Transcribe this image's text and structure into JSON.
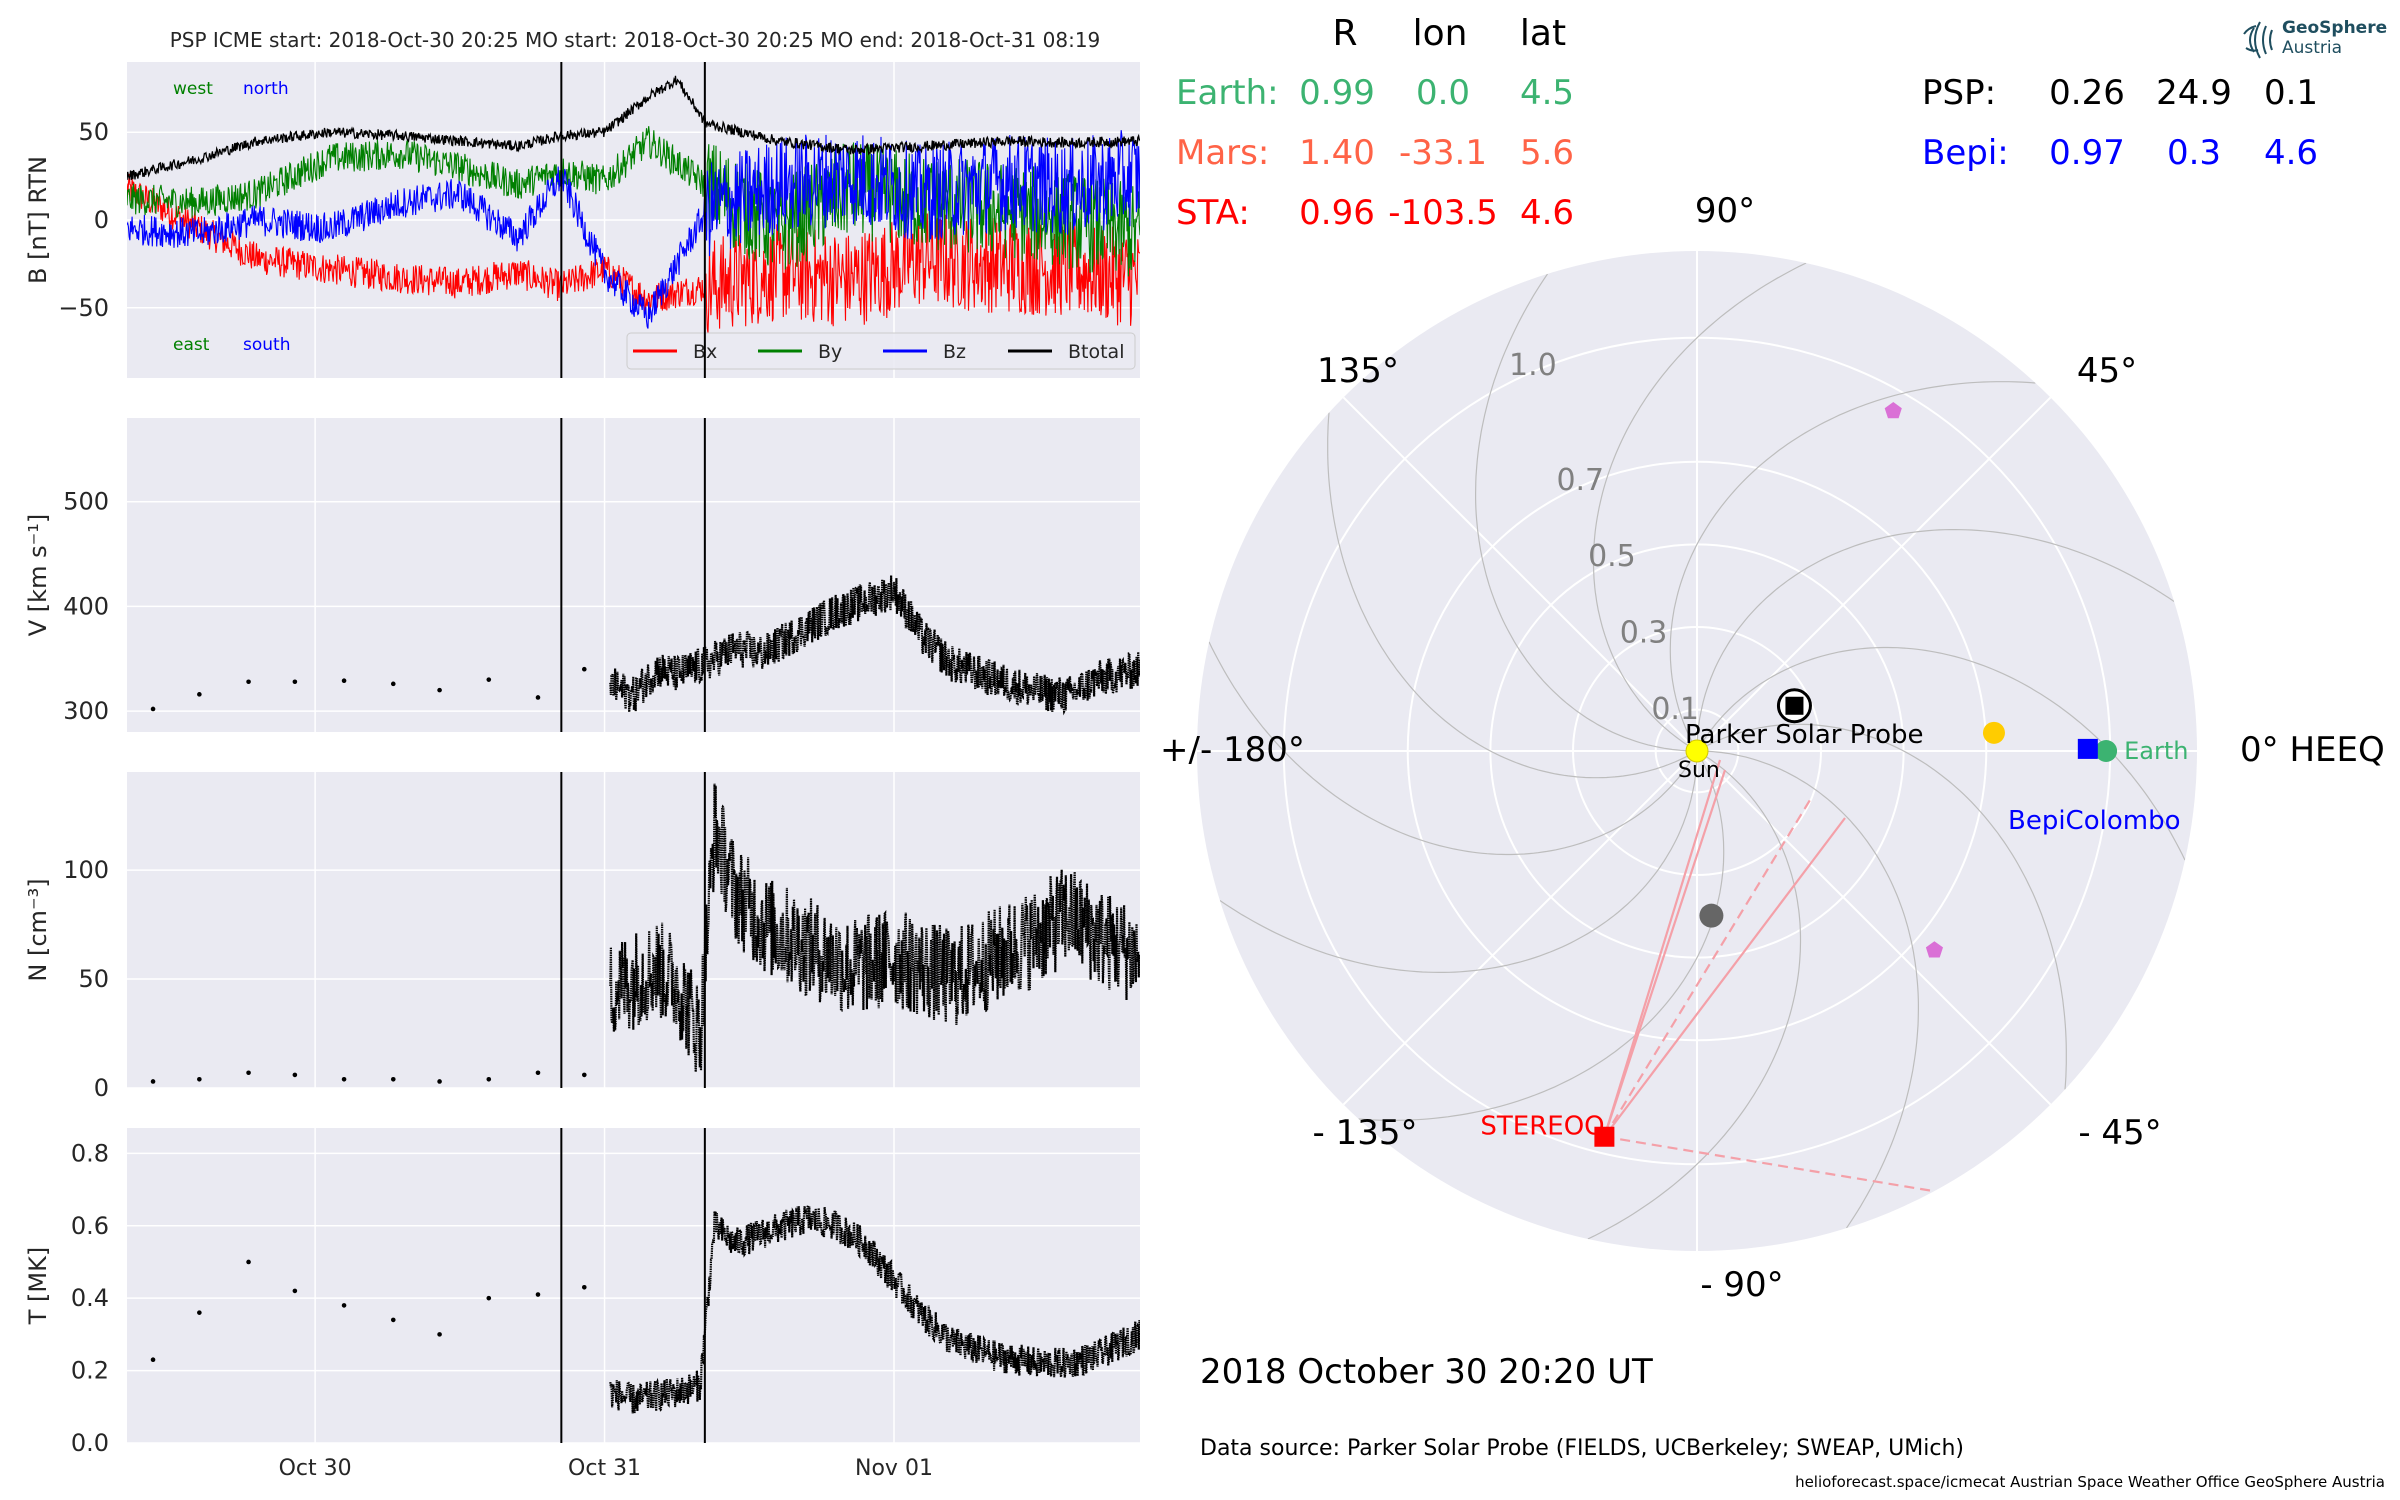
{
  "header": {
    "title": "PSP    ICME start: 2018-Oct-30 20:25   MO start: 2018-Oct-30 20:25   MO end: 2018-Oct-31 08:19"
  },
  "logo": {
    "line1": "GeoSphere",
    "line2": "Austria"
  },
  "timestamp": "2018 October 30  20:20 UT",
  "data_source": "Data source: Parker Solar Probe (FIELDS, UCBerkeley; SWEAP, UMich)",
  "credits": "helioforecast.space/icmecat   Austrian Space Weather Office   GeoSphere Austria",
  "colors": {
    "panel_bg": "#eaeaf2",
    "earth": "#3cb371",
    "mars": "#ff6347",
    "sta": "#ff0000",
    "bepi": "#0000ff",
    "psp": "#000000",
    "bx": "#ff0000",
    "by": "#008000",
    "bz": "#0000ff",
    "btotal": "#000000",
    "venus": "#ffcc00",
    "mercury": "#666666",
    "sun": "#ffff00",
    "solo": "#da70d6"
  },
  "position_table": {
    "headers": [
      "R",
      "lon",
      "lat"
    ],
    "rows": [
      {
        "name": "Earth:",
        "R": "0.99",
        "lon": "0.0",
        "lat": "4.5",
        "color": "#3cb371"
      },
      {
        "name": "Mars:",
        "R": "1.40",
        "lon": "-33.1",
        "lat": "5.6",
        "color": "#ff6347"
      },
      {
        "name": "STA:",
        "R": "0.96",
        "lon": "-103.5",
        "lat": "4.6",
        "color": "#ff0000"
      },
      {
        "name": "PSP:",
        "R": "0.26",
        "lon": "24.9",
        "lat": "0.1",
        "color": "#000000"
      },
      {
        "name": "Bepi:",
        "R": "0.97",
        "lon": "0.3",
        "lat": "4.6",
        "color": "#0000ff"
      }
    ]
  },
  "chart_data": [
    {
      "type": "line",
      "panel": "magnetic_field",
      "ylabel": "B [nT] RTN",
      "ylim": [
        -90,
        90
      ],
      "yticks": [
        -50,
        0,
        50
      ],
      "corner_labels": {
        "top_left": "west",
        "top_right": "north",
        "bottom_left": "east",
        "bottom_right": "south"
      },
      "xlim_days": [
        29.35,
        32.85
      ],
      "event_lines": [
        "2018-10-30 20:25",
        "2018-10-31 08:19"
      ],
      "legend": [
        "Bx",
        "By",
        "Bz",
        "Btotal"
      ],
      "legend_position": "lower-right",
      "series": [
        {
          "name": "Bx",
          "x": [
            29.35,
            29.6,
            29.8,
            30.05,
            30.3,
            30.5,
            30.7,
            30.85,
            31.0,
            31.15,
            31.35,
            31.6,
            31.85,
            32.1,
            32.4,
            32.6,
            32.85
          ],
          "y": [
            18,
            -5,
            -22,
            -28,
            -33,
            -36,
            -30,
            -38,
            -28,
            -45,
            -38,
            -30,
            -34,
            -22,
            -26,
            -28,
            -34
          ]
        },
        {
          "name": "By",
          "x": [
            29.35,
            29.6,
            29.8,
            30.05,
            30.3,
            30.5,
            30.7,
            30.85,
            31.0,
            31.15,
            31.35,
            31.6,
            31.85,
            32.1,
            32.4,
            32.6,
            32.85
          ],
          "y": [
            12,
            10,
            15,
            35,
            38,
            30,
            20,
            28,
            22,
            45,
            20,
            -5,
            18,
            10,
            5,
            0,
            -8
          ]
        },
        {
          "name": "Bz",
          "x": [
            29.35,
            29.6,
            29.8,
            30.05,
            30.3,
            30.5,
            30.7,
            30.85,
            31.0,
            31.15,
            31.35,
            31.6,
            31.85,
            32.1,
            32.4,
            32.6,
            32.85
          ],
          "y": [
            -5,
            -8,
            0,
            -5,
            10,
            15,
            -10,
            25,
            -30,
            -55,
            5,
            20,
            25,
            15,
            22,
            18,
            25
          ]
        },
        {
          "name": "Btotal",
          "x": [
            29.35,
            29.6,
            29.8,
            30.05,
            30.3,
            30.5,
            30.7,
            30.85,
            31.0,
            31.15,
            31.25,
            31.35,
            31.6,
            31.85,
            32.1,
            32.4,
            32.6,
            32.85
          ],
          "y": [
            25,
            35,
            45,
            50,
            48,
            45,
            42,
            48,
            50,
            70,
            80,
            55,
            45,
            40,
            42,
            45,
            44,
            45
          ]
        }
      ]
    },
    {
      "type": "scatter",
      "panel": "speed",
      "ylabel": "V [km s⁻¹]",
      "ylim": [
        280,
        580
      ],
      "yticks": [
        300,
        400,
        500
      ],
      "sparse": {
        "x": [
          29.44,
          29.6,
          29.77,
          29.93,
          30.1,
          30.27,
          30.43,
          30.6,
          30.77,
          30.93
        ],
        "y": [
          302,
          316,
          328,
          328,
          329,
          326,
          320,
          330,
          313,
          340
        ]
      },
      "continuous": {
        "x": [
          31.02,
          31.1,
          31.18,
          31.25,
          31.35,
          31.45,
          31.55,
          31.7,
          31.8,
          31.9,
          32.0,
          32.1,
          32.2,
          32.35,
          32.5,
          32.6,
          32.7,
          32.85
        ],
        "y": [
          325,
          315,
          340,
          335,
          345,
          360,
          355,
          380,
          395,
          405,
          415,
          370,
          345,
          330,
          318,
          315,
          330,
          340
        ]
      }
    },
    {
      "type": "scatter",
      "panel": "density",
      "ylabel": "N [cm⁻³]",
      "ylim": [
        0,
        145
      ],
      "yticks": [
        0,
        50,
        100
      ],
      "sparse": {
        "x": [
          29.44,
          29.6,
          29.77,
          29.93,
          30.1,
          30.27,
          30.43,
          30.6,
          30.77,
          30.93
        ],
        "y": [
          3,
          4,
          7,
          6,
          4,
          4,
          3,
          4,
          7,
          6
        ]
      },
      "continuous": {
        "x": [
          31.02,
          31.1,
          31.18,
          31.25,
          31.33,
          31.38,
          31.45,
          31.55,
          31.7,
          31.85,
          32.0,
          32.1,
          32.2,
          32.35,
          32.5,
          32.6,
          32.7,
          32.85
        ],
        "y": [
          45,
          50,
          55,
          48,
          25,
          120,
          90,
          75,
          65,
          55,
          60,
          55,
          50,
          60,
          70,
          80,
          70,
          60
        ]
      }
    },
    {
      "type": "scatter",
      "panel": "temperature",
      "ylabel": "T [MK]",
      "ylim": [
        0,
        0.87
      ],
      "yticks": [
        0.0,
        0.2,
        0.4,
        0.6,
        0.8
      ],
      "xticks": [
        {
          "pos": 30,
          "label": "Oct 30"
        },
        {
          "pos": 31,
          "label": "Oct 31"
        },
        {
          "pos": 32,
          "label": "Nov 01"
        }
      ],
      "sparse": {
        "x": [
          29.44,
          29.6,
          29.77,
          29.93,
          30.1,
          30.27,
          30.43,
          30.6,
          30.77,
          30.93
        ],
        "y": [
          0.23,
          0.36,
          0.5,
          0.42,
          0.38,
          0.34,
          0.3,
          0.4,
          0.41,
          0.43
        ]
      },
      "continuous": {
        "x": [
          31.02,
          31.1,
          31.18,
          31.25,
          31.33,
          31.38,
          31.45,
          31.55,
          31.7,
          31.8,
          31.9,
          32.0,
          32.1,
          32.2,
          32.35,
          32.5,
          32.6,
          32.7,
          32.85
        ],
        "y": [
          0.14,
          0.12,
          0.13,
          0.14,
          0.16,
          0.6,
          0.55,
          0.58,
          0.62,
          0.6,
          0.55,
          0.45,
          0.35,
          0.28,
          0.24,
          0.22,
          0.22,
          0.24,
          0.3
        ]
      }
    },
    {
      "type": "scatter",
      "panel": "polar_orbit_plot",
      "angle_labels": [
        {
          "angle": 90,
          "label": "90°"
        },
        {
          "angle": 45,
          "label": "45°"
        },
        {
          "angle": 0,
          "label": "0° HEEQ"
        },
        {
          "angle": -45,
          "label": "- 45°"
        },
        {
          "angle": -90,
          "label": "- 90°"
        },
        {
          "angle": -135,
          "label": "- 135°"
        },
        {
          "angle": 180,
          "label": "+/- 180°"
        },
        {
          "angle": 135,
          "label": "135°"
        }
      ],
      "radial_ticks": [
        {
          "r": 0.1,
          "label": "0.1"
        },
        {
          "r": 0.3,
          "label": "0.3"
        },
        {
          "r": 0.5,
          "label": "0.5"
        },
        {
          "r": 0.7,
          "label": "0.7"
        },
        {
          "r": 1.0,
          "label": "1.0"
        }
      ],
      "bodies": [
        {
          "name": "Sun",
          "r": 0.0,
          "lon": 0,
          "label": "Sun"
        },
        {
          "name": "Parker Solar Probe",
          "r": 0.26,
          "lon": 24.9,
          "label": "Parker Solar Probe"
        },
        {
          "name": "Earth",
          "r": 0.99,
          "lon": 0.0,
          "label": "Earth"
        },
        {
          "name": "BepiColombo",
          "r": 0.97,
          "lon": 0.3,
          "label": "BepiColombo"
        },
        {
          "name": "STEREO-A",
          "r": 0.96,
          "lon": -103.5,
          "label": "STEREO-A"
        },
        {
          "name": "Venus",
          "r": 0.72,
          "lon": 3.5
        },
        {
          "name": "Mercury",
          "r": 0.4,
          "lon": -85
        },
        {
          "name": "Solar Orbiter",
          "r": 0.95,
          "lon": 60
        },
        {
          "name": "Solar Orbiter",
          "r": 0.75,
          "lon": -40
        }
      ]
    }
  ]
}
